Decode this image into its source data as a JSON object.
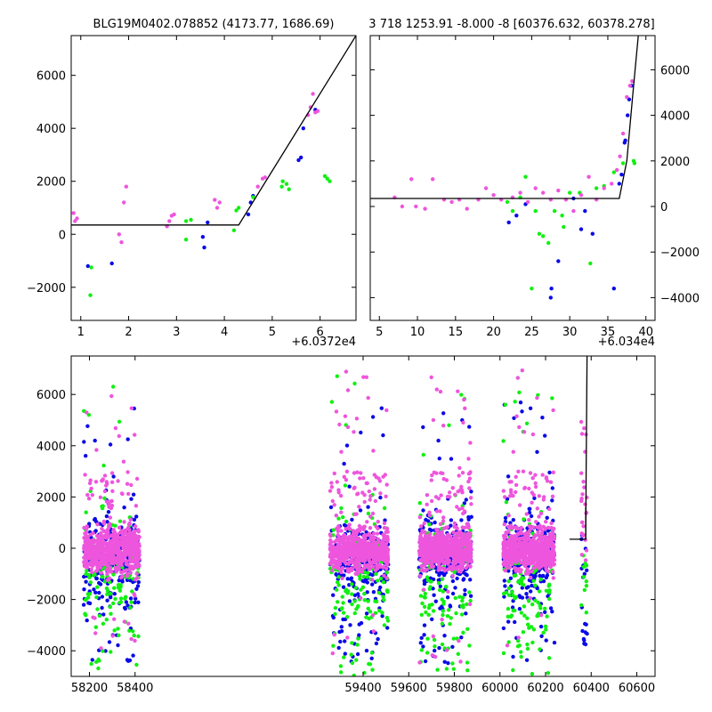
{
  "chart_data": [
    {
      "id": "top_left",
      "type": "scatter",
      "title": "BLG19M0402.078852 (4173.77, 1686.69)",
      "x_offset_label": "+6.0372e4",
      "xlim": [
        0.8,
        6.75
      ],
      "ylim": [
        -3250,
        7500
      ],
      "xticks": [
        1,
        2,
        3,
        4,
        5,
        6
      ],
      "yticks": [
        -2000,
        0,
        2000,
        4000,
        6000
      ],
      "yaxis_side": "left",
      "colors": {
        "blue": "#0a0ae6",
        "green": "#10f010",
        "pink": "#ee55dd",
        "model": "#000000"
      },
      "model_line": {
        "x": [
          0.8,
          4.3,
          6.75
        ],
        "y": [
          350,
          350,
          7500
        ]
      },
      "series": [
        {
          "color": "blue",
          "points": [
            [
              1.15,
              -1200
            ],
            [
              1.65,
              -1100
            ],
            [
              3.55,
              -100
            ],
            [
              3.58,
              -500
            ],
            [
              3.65,
              450
            ],
            [
              4.5,
              750
            ],
            [
              4.55,
              1200
            ],
            [
              4.6,
              1450
            ],
            [
              5.55,
              2800
            ],
            [
              5.6,
              2900
            ],
            [
              5.65,
              4000
            ],
            [
              5.9,
              4700
            ]
          ]
        },
        {
          "color": "green",
          "points": [
            [
              1.2,
              -2300
            ],
            [
              1.22,
              -1250
            ],
            [
              3.2,
              -200
            ],
            [
              3.2,
              500
            ],
            [
              3.3,
              550
            ],
            [
              4.2,
              150
            ],
            [
              4.25,
              900
            ],
            [
              4.3,
              1000
            ],
            [
              4.6,
              1400
            ],
            [
              5.2,
              1800
            ],
            [
              5.22,
              2000
            ],
            [
              5.3,
              1900
            ],
            [
              5.35,
              1700
            ],
            [
              6.1,
              2200
            ],
            [
              6.15,
              2100
            ],
            [
              6.2,
              2000
            ]
          ]
        },
        {
          "color": "pink",
          "points": [
            [
              0.85,
              800
            ],
            [
              0.88,
              500
            ],
            [
              0.92,
              600
            ],
            [
              1.8,
              0
            ],
            [
              1.85,
              -300
            ],
            [
              1.9,
              1200
            ],
            [
              1.95,
              1800
            ],
            [
              2.8,
              300
            ],
            [
              2.85,
              500
            ],
            [
              2.9,
              700
            ],
            [
              2.95,
              750
            ],
            [
              3.8,
              1300
            ],
            [
              3.85,
              1000
            ],
            [
              3.9,
              1200
            ],
            [
              4.7,
              1800
            ],
            [
              4.8,
              2100
            ],
            [
              4.85,
              2150
            ],
            [
              5.75,
              4500
            ],
            [
              5.8,
              4800
            ],
            [
              5.85,
              5300
            ],
            [
              5.9,
              4600
            ],
            [
              5.95,
              4650
            ]
          ]
        }
      ]
    },
    {
      "id": "top_right",
      "type": "scatter",
      "title": "3 718 1253.91 -8.000 -8 [60376.632, 60378.278]",
      "x_offset_label": "+6.034e4",
      "xlim": [
        3.8,
        41.2
      ],
      "ylim": [
        -5000,
        7500
      ],
      "xticks": [
        5,
        10,
        15,
        20,
        25,
        30,
        35,
        40
      ],
      "yticks": [
        -4000,
        -2000,
        0,
        2000,
        4000,
        6000
      ],
      "yaxis_side": "right",
      "colors": {
        "blue": "#0a0ae6",
        "green": "#10f010",
        "pink": "#ee55dd",
        "model": "#000000"
      },
      "model_line": {
        "x": [
          3.8,
          36.5,
          37.5,
          38.3,
          39.0
        ],
        "y": [
          350,
          350,
          2000,
          5000,
          7500
        ]
      },
      "series": [
        {
          "color": "blue",
          "points": [
            [
              22,
              -700
            ],
            [
              23,
              -400
            ],
            [
              24.2,
              100
            ],
            [
              27.5,
              -4000
            ],
            [
              27.6,
              -3600
            ],
            [
              28.5,
              -2400
            ],
            [
              30.5,
              350
            ],
            [
              31.5,
              -1000
            ],
            [
              32,
              -200
            ],
            [
              33,
              -1200
            ],
            [
              35.8,
              -3600
            ],
            [
              36.5,
              1000
            ],
            [
              36.8,
              1400
            ],
            [
              37.2,
              2800
            ],
            [
              37.3,
              2900
            ],
            [
              37.6,
              4000
            ],
            [
              37.8,
              4700
            ],
            [
              38.1,
              5300
            ]
          ]
        },
        {
          "color": "green",
          "points": [
            [
              21.8,
              200
            ],
            [
              22.5,
              -200
            ],
            [
              23.5,
              400
            ],
            [
              24.2,
              1300
            ],
            [
              25,
              -3600
            ],
            [
              25.5,
              -200
            ],
            [
              26,
              -1200
            ],
            [
              26.5,
              -1300
            ],
            [
              27.2,
              -1600
            ],
            [
              28,
              -200
            ],
            [
              29,
              -400
            ],
            [
              29.2,
              -900
            ],
            [
              30,
              600
            ],
            [
              31.3,
              600
            ],
            [
              32.7,
              -2500
            ],
            [
              33.5,
              800
            ],
            [
              34.5,
              900
            ],
            [
              35.8,
              1500
            ],
            [
              37,
              1900
            ],
            [
              38.4,
              2000
            ],
            [
              38.5,
              1900
            ]
          ]
        },
        {
          "color": "pink",
          "points": [
            [
              7,
              400
            ],
            [
              8,
              0
            ],
            [
              9.2,
              1200
            ],
            [
              9.8,
              0
            ],
            [
              11,
              -100
            ],
            [
              12,
              1200
            ],
            [
              13.5,
              300
            ],
            [
              14.5,
              200
            ],
            [
              15.5,
              300
            ],
            [
              16.5,
              -100
            ],
            [
              18,
              300
            ],
            [
              19,
              800
            ],
            [
              20,
              500
            ],
            [
              21,
              300
            ],
            [
              22.5,
              400
            ],
            [
              23.5,
              600
            ],
            [
              24.5,
              200
            ],
            [
              25.5,
              800
            ],
            [
              26.5,
              600
            ],
            [
              27.5,
              300
            ],
            [
              28.5,
              700
            ],
            [
              29.5,
              300
            ],
            [
              30.5,
              -200
            ],
            [
              31.5,
              500
            ],
            [
              32.5,
              1300
            ],
            [
              33.5,
              300
            ],
            [
              34.5,
              800
            ],
            [
              35.5,
              1000
            ],
            [
              36.2,
              1600
            ],
            [
              36.6,
              2200
            ],
            [
              37,
              3200
            ],
            [
              37.5,
              4800
            ],
            [
              37.9,
              5300
            ],
            [
              38.2,
              5500
            ]
          ]
        }
      ]
    },
    {
      "id": "bottom",
      "type": "scatter",
      "title": "",
      "x_offset_label": "",
      "xlim": [
        58120,
        60680
      ],
      "ylim": [
        -5000,
        7500
      ],
      "xticks": [
        58200,
        58400,
        59400,
        59600,
        59800,
        60000,
        60200,
        60400,
        60600
      ],
      "tick_labels": [
        "58200",
        "58400",
        "59400",
        "59600",
        "59800",
        "60000",
        "60200",
        "60400",
        "60600"
      ],
      "yticks": [
        -4000,
        -2000,
        0,
        2000,
        4000,
        6000
      ],
      "yaxis_side": "left",
      "seasons": [
        [
          58175,
          58420
        ],
        [
          59255,
          59510
        ],
        [
          59645,
          59875
        ],
        [
          60015,
          60240
        ],
        [
          60355,
          60382
        ]
      ],
      "colors": {
        "blue": "#0a0ae6",
        "green": "#10f010",
        "pink": "#ee55dd",
        "model": "#000000"
      },
      "model_line": {
        "x": [
          60305,
          60376,
          60378,
          60382
        ],
        "y": [
          350,
          350,
          3000,
          7500
        ]
      },
      "model_connector": {
        "x": [
          60376,
          60376
        ],
        "y": [
          350,
          1600
        ]
      }
    }
  ]
}
